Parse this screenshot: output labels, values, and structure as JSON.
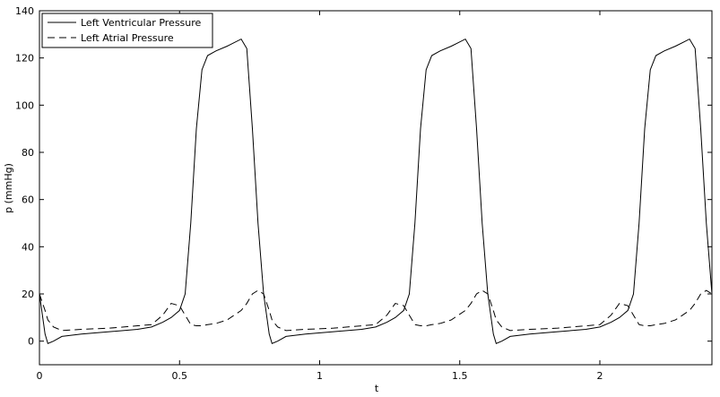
{
  "chart_data": {
    "type": "line",
    "xlabel": "t",
    "ylabel": "p (mmHg)",
    "x": [
      0,
      0.02,
      0.03,
      0.05,
      0.08,
      0.15,
      0.25,
      0.35,
      0.4,
      0.44,
      0.47,
      0.5,
      0.52,
      0.54,
      0.56,
      0.58,
      0.6,
      0.63,
      0.67,
      0.72,
      0.74,
      0.76,
      0.78,
      0.8,
      0.82,
      0.83,
      0.85,
      0.88,
      0.95,
      1.05,
      1.15,
      1.2,
      1.24,
      1.27,
      1.3,
      1.32,
      1.34,
      1.36,
      1.38,
      1.4,
      1.43,
      1.47,
      1.52,
      1.54,
      1.56,
      1.58,
      1.6,
      1.62,
      1.63,
      1.65,
      1.68,
      1.75,
      1.85,
      1.95,
      2.0,
      2.04,
      2.07,
      2.1,
      2.12,
      2.14,
      2.16,
      2.18,
      2.2,
      2.23,
      2.27,
      2.32,
      2.34,
      2.36,
      2.38,
      2.4
    ],
    "series": [
      {
        "name": "Left Ventricular Pressure",
        "color": "#000000",
        "linestyle": "solid",
        "values": [
          20,
          3,
          -1,
          0,
          2,
          3,
          4,
          5,
          6,
          8,
          10,
          13,
          20,
          50,
          90,
          115,
          121,
          123,
          125,
          128,
          124,
          90,
          50,
          20,
          3,
          -1,
          0,
          2,
          3,
          4,
          5,
          6,
          8,
          10,
          13,
          20,
          50,
          90,
          115,
          121,
          123,
          125,
          128,
          124,
          90,
          50,
          20,
          3,
          -1,
          0,
          2,
          3,
          4,
          5,
          6,
          8,
          10,
          13,
          20,
          50,
          90,
          115,
          121,
          123,
          125,
          128,
          124,
          90,
          50,
          20
        ]
      },
      {
        "name": "Left Atrial Pressure",
        "color": "#000000",
        "linestyle": "dashed",
        "values": [
          20,
          13,
          9,
          6,
          4.5,
          5,
          5.5,
          6.5,
          7,
          11,
          16,
          15,
          11,
          7,
          6.5,
          6.5,
          7,
          7.5,
          9,
          13,
          16,
          20,
          21.5,
          20,
          13,
          9,
          6,
          4.5,
          5,
          5.5,
          6.5,
          7,
          11,
          16,
          15,
          11,
          7,
          6.5,
          6.5,
          7,
          7.5,
          9,
          13,
          16,
          20,
          21.5,
          20,
          13,
          9,
          6,
          4.5,
          5,
          5.5,
          6.5,
          7,
          11,
          16,
          15,
          11,
          7,
          6.5,
          6.5,
          7,
          7.5,
          9,
          13,
          16,
          20,
          21.5,
          20
        ]
      }
    ],
    "xlim": [
      0,
      2.4
    ],
    "ylim": [
      -10,
      140
    ],
    "xticks": [
      0,
      0.5,
      1,
      1.5,
      2
    ],
    "yticks": [
      0,
      20,
      40,
      60,
      80,
      100,
      120,
      140
    ],
    "legend": "upper-left",
    "grid": false
  }
}
